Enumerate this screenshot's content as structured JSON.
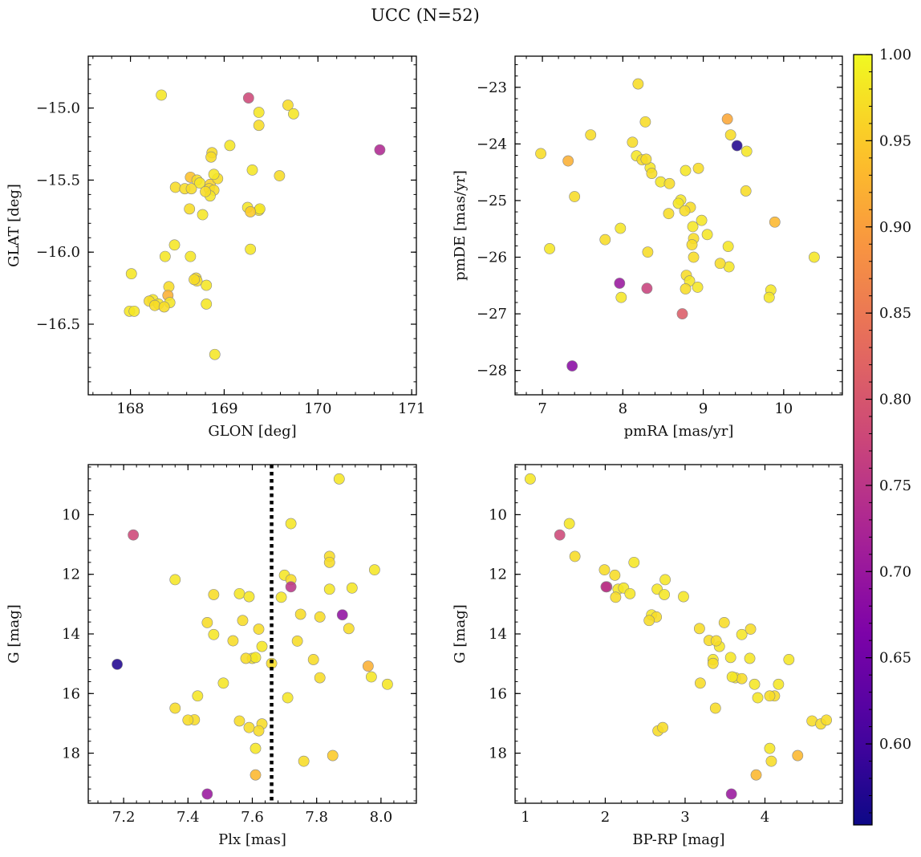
{
  "figure": {
    "title": "UCC (N=52)"
  },
  "colorbar": {
    "ticks": [
      1.0,
      0.95,
      0.9,
      0.85,
      0.8,
      0.75,
      0.7,
      0.65,
      0.6
    ],
    "tick_labels": [
      "1.00",
      "0.95",
      "0.90",
      "0.85",
      "0.80",
      "0.75",
      "0.70",
      "0.65",
      "0.60"
    ],
    "range": [
      0.553,
      1.0
    ],
    "colormap": "plasma"
  },
  "chart_data": [
    {
      "type": "scatter",
      "xlabel": "GLON [deg]",
      "ylabel": "GLAT [deg]",
      "xlim": [
        167.55,
        171.05
      ],
      "ylim": [
        -16.99,
        -14.64
      ],
      "xticks": [
        168,
        169,
        170,
        171
      ],
      "xtick_labels": [
        "168",
        "169",
        "170",
        "171"
      ],
      "yticks": [
        -15.0,
        -15.5,
        -16.0,
        -16.5
      ],
      "ytick_labels": [
        "−15.0",
        "−15.5",
        "−16.0",
        "−16.5"
      ],
      "x": [
        168.33,
        169.26,
        169.68,
        169.37,
        169.74,
        169.37,
        170.66,
        169.06,
        168.87,
        168.86,
        169.3,
        169.59,
        168.64,
        168.71,
        168.48,
        168.58,
        168.65,
        168.85,
        168.84,
        168.89,
        168.85,
        169.25,
        169.37,
        169.38,
        168.63,
        168.77,
        168.47,
        169.28,
        168.37,
        168.64,
        168.01,
        168.7,
        168.71,
        168.41,
        168.81,
        168.24,
        168.4,
        168.2,
        168.3,
        168.42,
        168.26,
        168.81,
        167.99,
        168.04,
        168.9,
        168.93,
        168.36,
        168.68,
        168.89,
        168.74,
        168.8,
        169.28
      ],
      "y": [
        -14.91,
        -14.93,
        -14.98,
        -15.03,
        -15.04,
        -15.12,
        -15.29,
        -15.26,
        -15.31,
        -15.34,
        -15.43,
        -15.47,
        -15.48,
        -15.5,
        -15.55,
        -15.56,
        -15.56,
        -15.53,
        -15.56,
        -15.57,
        -15.61,
        -15.69,
        -15.71,
        -15.7,
        -15.7,
        -15.74,
        -15.95,
        -15.98,
        -16.03,
        -16.03,
        -16.15,
        -16.18,
        -16.2,
        -16.24,
        -16.23,
        -16.33,
        -16.3,
        -16.34,
        -16.36,
        -16.35,
        -16.37,
        -16.36,
        -16.41,
        -16.41,
        -16.71,
        -15.49,
        -16.38,
        -16.19,
        -15.46,
        -15.52,
        -15.58,
        -15.72
      ],
      "c": [
        0.98,
        0.78,
        0.97,
        0.98,
        0.98,
        0.97,
        0.73,
        0.98,
        0.97,
        0.97,
        0.98,
        0.97,
        0.94,
        0.97,
        0.97,
        0.97,
        0.97,
        0.96,
        0.97,
        0.97,
        0.98,
        0.98,
        0.98,
        0.98,
        0.97,
        0.98,
        0.98,
        0.98,
        0.98,
        0.98,
        0.98,
        0.97,
        0.97,
        0.97,
        0.98,
        0.98,
        0.92,
        0.97,
        0.98,
        0.98,
        0.97,
        0.98,
        0.98,
        0.98,
        0.98,
        0.97,
        0.97,
        0.97,
        0.98,
        0.98,
        0.97,
        0.95
      ]
    },
    {
      "type": "scatter",
      "xlabel": "pmRA [mas/yr]",
      "ylabel": "pmDE [mas/yr]",
      "xlim": [
        6.66,
        10.73
      ],
      "ylim": [
        -28.43,
        -22.45
      ],
      "xticks": [
        7,
        8,
        9,
        10
      ],
      "xtick_labels": [
        "7",
        "8",
        "9",
        "10"
      ],
      "yticks": [
        -23,
        -24,
        -25,
        -26,
        -27,
        -28
      ],
      "ytick_labels": [
        "−23",
        "−24",
        "−25",
        "−26",
        "−27",
        "−28"
      ],
      "x": [
        8.19,
        8.28,
        9.3,
        9.34,
        9.42,
        9.54,
        7.6,
        6.98,
        8.12,
        9.53,
        8.17,
        8.34,
        8.24,
        8.36,
        8.29,
        8.78,
        8.94,
        8.47,
        7.32,
        8.72,
        8.69,
        8.84,
        8.57,
        7.4,
        8.87,
        9.89,
        7.78,
        7.97,
        7.09,
        8.31,
        8.88,
        8.86,
        9.31,
        8.88,
        10.38,
        8.79,
        9.32,
        9.21,
        8.83,
        8.93,
        7.98,
        8.78,
        9.84,
        9.82,
        7.96,
        8.3,
        7.37,
        8.74,
        8.77,
        9.05,
        8.58,
        8.98
      ],
      "y": [
        -22.94,
        -23.61,
        -23.56,
        -23.84,
        -24.03,
        -24.13,
        -23.84,
        -24.17,
        -23.97,
        -24.83,
        -24.21,
        -24.42,
        -24.28,
        -24.52,
        -24.27,
        -24.47,
        -24.43,
        -24.67,
        -24.3,
        -24.99,
        -25.05,
        -25.12,
        -25.23,
        -24.93,
        -25.46,
        -25.38,
        -25.69,
        -25.49,
        -25.85,
        -25.91,
        -25.67,
        -25.78,
        -25.81,
        -26.0,
        -26.0,
        -26.32,
        -26.17,
        -26.11,
        -26.42,
        -26.53,
        -26.71,
        -26.56,
        -26.58,
        -26.71,
        -26.46,
        -26.55,
        -27.92,
        -27.0,
        -25.18,
        -25.6,
        -24.7,
        -25.35
      ],
      "c": [
        0.97,
        0.97,
        0.91,
        0.97,
        0.57,
        0.98,
        0.97,
        0.97,
        0.97,
        0.97,
        0.98,
        0.98,
        0.97,
        0.97,
        0.97,
        0.98,
        0.97,
        0.98,
        0.92,
        0.98,
        0.98,
        0.97,
        0.97,
        0.97,
        0.98,
        0.93,
        0.97,
        0.98,
        0.98,
        0.97,
        0.97,
        0.97,
        0.98,
        0.97,
        0.98,
        0.97,
        0.98,
        0.97,
        0.98,
        0.98,
        0.98,
        0.97,
        0.98,
        0.98,
        0.7,
        0.77,
        0.68,
        0.81,
        0.97,
        0.98,
        0.97,
        0.98
      ]
    },
    {
      "type": "scatter",
      "xlabel": "Plx [mas]",
      "ylabel": "G [mag]",
      "xlim": [
        7.09,
        8.11
      ],
      "ylim": [
        19.68,
        8.32
      ],
      "xticks": [
        7.2,
        7.4,
        7.6,
        7.8,
        8.0
      ],
      "xtick_labels": [
        "7.2",
        "7.4",
        "7.6",
        "7.8",
        "8.0"
      ],
      "yticks": [
        10,
        12,
        14,
        16,
        18
      ],
      "ytick_labels": [
        "10",
        "12",
        "14",
        "16",
        "18"
      ],
      "vline": 7.66,
      "x": [
        7.87,
        7.23,
        7.72,
        7.84,
        7.84,
        7.98,
        7.36,
        7.7,
        7.72,
        7.72,
        7.91,
        7.84,
        7.48,
        7.56,
        7.59,
        7.69,
        7.57,
        7.88,
        7.46,
        7.63,
        7.75,
        7.9,
        7.48,
        7.81,
        7.54,
        7.6,
        7.61,
        7.18,
        7.96,
        7.66,
        7.97,
        7.43,
        7.81,
        8.02,
        7.51,
        7.42,
        7.71,
        7.74,
        7.36,
        7.4,
        7.56,
        7.63,
        7.59,
        7.62,
        7.61,
        7.85,
        7.76,
        7.61,
        7.46,
        7.62,
        7.79,
        7.58
      ],
      "y": [
        8.8,
        10.68,
        10.3,
        11.4,
        11.6,
        11.85,
        12.18,
        12.03,
        12.18,
        12.42,
        12.46,
        12.5,
        12.68,
        12.65,
        12.75,
        12.77,
        13.55,
        13.36,
        13.62,
        14.42,
        13.34,
        13.82,
        14.02,
        13.43,
        14.23,
        14.82,
        14.79,
        15.02,
        15.08,
        14.99,
        15.44,
        16.08,
        15.47,
        15.69,
        15.65,
        16.88,
        16.14,
        14.24,
        16.49,
        16.89,
        16.92,
        17.02,
        17.14,
        17.25,
        17.84,
        18.08,
        18.27,
        18.73,
        19.37,
        13.84,
        14.86,
        14.82
      ],
      "c": [
        0.98,
        0.78,
        0.98,
        0.97,
        0.97,
        0.98,
        0.98,
        0.98,
        0.97,
        0.75,
        0.98,
        0.98,
        0.97,
        0.98,
        0.98,
        0.98,
        0.97,
        0.69,
        0.97,
        0.98,
        0.97,
        0.97,
        0.98,
        0.97,
        0.97,
        0.98,
        0.98,
        0.57,
        0.92,
        0.97,
        0.98,
        0.98,
        0.97,
        0.98,
        0.98,
        0.97,
        0.98,
        0.97,
        0.97,
        0.97,
        0.97,
        0.97,
        0.97,
        0.97,
        0.98,
        0.95,
        0.97,
        0.93,
        0.7,
        0.97,
        0.97,
        0.97
      ]
    },
    {
      "type": "scatter",
      "xlabel": "BP-RP [mag]",
      "ylabel": "G [mag]",
      "xlim": [
        0.87,
        4.97
      ],
      "ylim": [
        19.68,
        8.32
      ],
      "xticks": [
        1,
        2,
        3,
        4
      ],
      "xtick_labels": [
        "1",
        "2",
        "3",
        "4"
      ],
      "yticks": [
        10,
        12,
        14,
        16,
        18
      ],
      "ytick_labels": [
        "10",
        "12",
        "14",
        "16",
        "18"
      ],
      "x": [
        1.06,
        1.43,
        1.55,
        1.62,
        1.99,
        2.36,
        2.12,
        2.02,
        2.75,
        2.16,
        2.65,
        2.23,
        2.31,
        2.74,
        2.98,
        2.13,
        2.58,
        2.64,
        2.55,
        3.49,
        3.18,
        3.43,
        3.3,
        3.71,
        3.81,
        3.35,
        3.35,
        3.57,
        3.39,
        3.63,
        3.71,
        3.59,
        4.3,
        3.19,
        3.87,
        4.12,
        3.38,
        3.91,
        4.06,
        4.17,
        4.59,
        4.7,
        4.77,
        4.08,
        4.41,
        4.06,
        3.89,
        2.66,
        2.72,
        3.58,
        2.01,
        3.82
      ],
      "y": [
        8.8,
        10.68,
        10.3,
        11.4,
        11.85,
        11.6,
        12.03,
        12.42,
        12.18,
        12.5,
        12.5,
        12.46,
        12.65,
        12.68,
        12.75,
        12.77,
        13.36,
        13.43,
        13.55,
        13.62,
        13.82,
        14.42,
        14.22,
        14.02,
        14.82,
        14.86,
        14.99,
        14.79,
        14.23,
        15.47,
        15.5,
        15.44,
        14.86,
        15.65,
        15.69,
        16.08,
        16.49,
        16.14,
        17.84,
        15.69,
        16.92,
        17.02,
        16.89,
        18.27,
        18.08,
        16.08,
        18.73,
        17.25,
        17.14,
        19.37,
        12.42,
        13.84
      ],
      "c": [
        0.98,
        0.78,
        0.98,
        0.97,
        0.97,
        0.98,
        0.97,
        0.75,
        0.98,
        0.98,
        0.98,
        0.98,
        0.98,
        0.98,
        0.98,
        0.97,
        0.98,
        0.97,
        0.97,
        0.97,
        0.97,
        0.98,
        0.97,
        0.98,
        0.98,
        0.98,
        0.97,
        0.98,
        0.97,
        0.98,
        0.97,
        0.98,
        0.98,
        0.97,
        0.98,
        0.97,
        0.97,
        0.98,
        0.98,
        0.98,
        0.97,
        0.97,
        0.97,
        0.97,
        0.93,
        0.97,
        0.93,
        0.97,
        0.97,
        0.7,
        0.75,
        0.97
      ]
    }
  ]
}
